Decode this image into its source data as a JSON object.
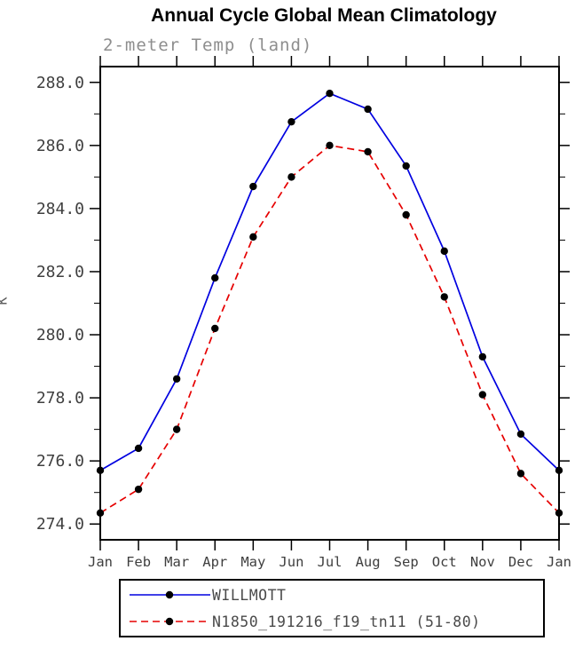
{
  "chart_data": {
    "type": "line",
    "title": "Annual Cycle Global Mean Climatology",
    "subtitle": "2-meter Temp (land)",
    "ylabel": "K",
    "x_tick_labels": [
      "Jan",
      "Feb",
      "Mar",
      "Apr",
      "May",
      "Jun",
      "Jul",
      "Aug",
      "Sep",
      "Oct",
      "Nov",
      "Dec",
      "Jan"
    ],
    "y_ticks": [
      274.0,
      276.0,
      278.0,
      280.0,
      282.0,
      284.0,
      286.0,
      288.0
    ],
    "ylim": [
      273.5,
      288.5
    ],
    "grid": false,
    "legend_position": "bottom",
    "marker_color": "#000000",
    "series": [
      {
        "name": "WILLMOTT",
        "color": "#0000e0",
        "style": "solid",
        "values": [
          275.7,
          276.4,
          278.6,
          281.8,
          284.7,
          286.75,
          287.65,
          287.15,
          285.35,
          282.65,
          279.3,
          276.85,
          275.7
        ]
      },
      {
        "name": "N1850_191216_f19_tn11 (51-80)",
        "color": "#e60000",
        "style": "dashed",
        "values": [
          274.35,
          275.1,
          277.0,
          280.2,
          283.1,
          285.0,
          286.0,
          285.8,
          283.8,
          281.2,
          278.1,
          275.6,
          274.35
        ]
      }
    ]
  }
}
